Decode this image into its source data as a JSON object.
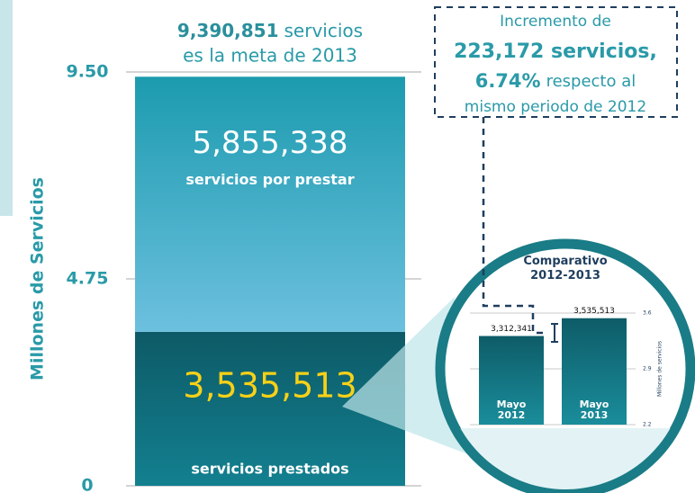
{
  "chart_data": [
    {
      "type": "stacked-bar",
      "title": {
        "total": "9,390,851",
        "text": "servicios",
        "subtitle": "es la meta de 2013"
      },
      "ylabel": "Millones de Servicios",
      "ylim": [
        0,
        9.5
      ],
      "yticks": [
        0,
        4.75,
        {
          "value": 9.5,
          "label": "9.50"
        }
      ],
      "series": [
        {
          "name": "servicios prestados",
          "color": "#0f5f6b",
          "label_color": "#f7d117",
          "values": [
            3.535513
          ],
          "value_labels": [
            "3,535,513"
          ]
        },
        {
          "name": "servicios por prestar",
          "color": "#2aa3b8",
          "label_color": "#ffffff",
          "values": [
            5.855338
          ],
          "value_labels": [
            "5,855,338"
          ]
        }
      ],
      "annotation": {
        "line1": "Incremento de",
        "amount": "223,172 servicios,",
        "percent": "6.74%",
        "line3": "respecto al",
        "line4": "mismo periodo de 2012"
      }
    },
    {
      "type": "bar",
      "title": "Comparativo 2012-2013",
      "ylabel": "Millones de servicios",
      "categories": [
        "Mayo 2012",
        "Mayo 2013"
      ],
      "values": [
        3.312341,
        3.535513
      ],
      "value_labels": [
        "3,312,341",
        "3,535,513"
      ],
      "color": "#16707b",
      "ylim": [
        2.2,
        3.6
      ],
      "yticks": [
        2.2,
        2.9,
        3.6
      ]
    }
  ]
}
